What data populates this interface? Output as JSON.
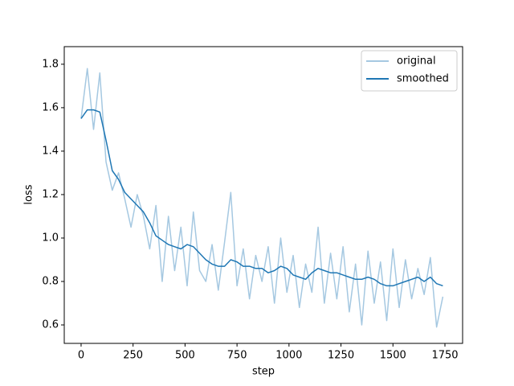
{
  "chart_data": {
    "type": "line",
    "xlabel": "step",
    "ylabel": "loss",
    "x": [
      0,
      30,
      60,
      90,
      120,
      150,
      180,
      210,
      240,
      270,
      300,
      330,
      360,
      390,
      420,
      450,
      480,
      510,
      540,
      570,
      600,
      630,
      660,
      690,
      720,
      750,
      780,
      810,
      840,
      870,
      900,
      930,
      960,
      990,
      1020,
      1050,
      1080,
      1110,
      1140,
      1170,
      1200,
      1230,
      1260,
      1290,
      1320,
      1350,
      1380,
      1410,
      1440,
      1470,
      1500,
      1530,
      1560,
      1590,
      1620,
      1650,
      1680,
      1710,
      1740
    ],
    "series": [
      {
        "name": "original",
        "color": "#a5c8e1",
        "values": [
          1.55,
          1.78,
          1.5,
          1.76,
          1.35,
          1.22,
          1.3,
          1.18,
          1.05,
          1.2,
          1.1,
          0.95,
          1.15,
          0.8,
          1.1,
          0.85,
          1.05,
          0.78,
          1.12,
          0.85,
          0.8,
          0.97,
          0.76,
          0.98,
          1.21,
          0.78,
          0.95,
          0.72,
          0.92,
          0.8,
          0.96,
          0.7,
          1.0,
          0.75,
          0.92,
          0.68,
          0.88,
          0.75,
          1.05,
          0.7,
          0.93,
          0.72,
          0.96,
          0.66,
          0.88,
          0.6,
          0.94,
          0.7,
          0.89,
          0.62,
          0.95,
          0.68,
          0.9,
          0.72,
          0.86,
          0.74,
          0.91,
          0.59,
          0.73
        ]
      },
      {
        "name": "smoothed",
        "color": "#1f77b4",
        "values": [
          1.55,
          1.59,
          1.59,
          1.58,
          1.45,
          1.31,
          1.27,
          1.21,
          1.18,
          1.15,
          1.12,
          1.07,
          1.01,
          0.99,
          0.97,
          0.96,
          0.95,
          0.97,
          0.96,
          0.93,
          0.9,
          0.88,
          0.87,
          0.87,
          0.9,
          0.89,
          0.87,
          0.87,
          0.86,
          0.86,
          0.84,
          0.85,
          0.87,
          0.86,
          0.83,
          0.82,
          0.81,
          0.84,
          0.86,
          0.85,
          0.84,
          0.84,
          0.83,
          0.82,
          0.81,
          0.81,
          0.82,
          0.81,
          0.79,
          0.78,
          0.78,
          0.79,
          0.8,
          0.81,
          0.82,
          0.8,
          0.82,
          0.79,
          0.78
        ]
      }
    ],
    "xlim": [
      -81,
      1835
    ],
    "ylim": [
      0.515,
      1.881
    ],
    "xticks": [
      0,
      250,
      500,
      750,
      1000,
      1250,
      1500,
      1750
    ],
    "yticks": [
      0.6,
      0.8,
      {
        "value": 1.0,
        "label": "1.0"
      },
      1.2,
      1.4,
      1.6,
      1.8
    ],
    "grid": false,
    "legend": "upper right"
  }
}
